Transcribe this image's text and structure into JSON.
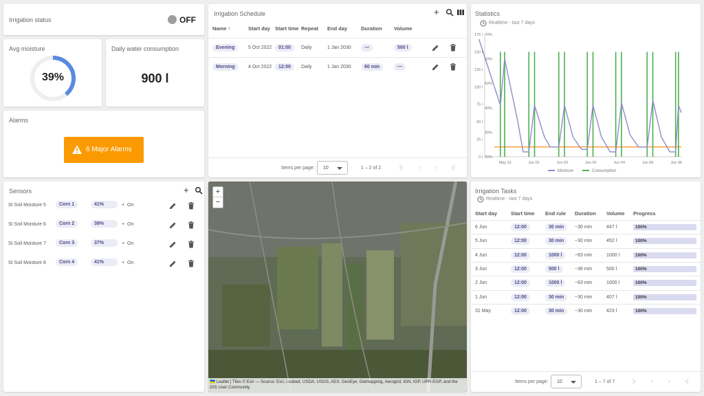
{
  "irrigation_status": {
    "title": "Irrigation status",
    "state": "OFF",
    "indicator_color": "#9e9e9e"
  },
  "avg_moisture": {
    "title": "Avg moisture",
    "value_label": "39%",
    "value": 0.39,
    "color": "#5a8be0"
  },
  "water": {
    "title": "Daily water consumption",
    "value": "900 l"
  },
  "alarms": {
    "title": "Alarms",
    "button_label": "6 Major Alarms",
    "color": "#fb9a00"
  },
  "sensors": {
    "title": "Sensors",
    "rows": [
      {
        "name": "SI Soil Moisture 5",
        "crop": "Corn 1",
        "moisture": "41%",
        "status": "On"
      },
      {
        "name": "SI Soil Moisture 6",
        "crop": "Corn 2",
        "moisture": "38%",
        "status": "On"
      },
      {
        "name": "SI Soil Moisture 7",
        "crop": "Corn 3",
        "moisture": "37%",
        "status": "On"
      },
      {
        "name": "SI Soil Moisture 8",
        "crop": "Corn 4",
        "moisture": "41%",
        "status": "On"
      }
    ]
  },
  "schedule": {
    "title": "Irrigation Schedule",
    "columns": [
      "Name",
      "Start day",
      "Start time",
      "Repeat",
      "End day",
      "Duration",
      "Volume"
    ],
    "rows": [
      {
        "name": "Evening",
        "start_day": "5 Oct 2022",
        "start_time": "01:00",
        "repeat": "Daily",
        "end_day": "1 Jan 2030",
        "duration": "—",
        "volume": "500 l"
      },
      {
        "name": "Morning",
        "start_day": "4 Oct 2022",
        "start_time": "12:00",
        "repeat": "Daily",
        "end_day": "1 Jan 2030",
        "duration": "60 min",
        "volume": "—"
      }
    ],
    "pager": {
      "items_per_page_label": "Items per page:",
      "page_size": "10",
      "range": "1 – 2 of 2"
    }
  },
  "statistics": {
    "title": "Statistics",
    "subtitle": "Realtime - last 7 days",
    "legend": {
      "moisture": "Moisture",
      "consumption": "Consumption"
    },
    "colors": {
      "moisture": "#8c8cc8",
      "consumption": "#4caf50",
      "threshold": "#ff8c1a"
    }
  },
  "chart_data": {
    "type": "line",
    "x_ticks": [
      "May 31",
      "Jun 01",
      "Jun 02",
      "Jun 03",
      "Jun 04",
      "Jun 05",
      "Jun 06"
    ],
    "y_left_ticks": [
      "175 l",
      "150 l",
      "125 l",
      "100 l",
      "75 l",
      "50 l",
      "25 l",
      "0 l"
    ],
    "y_right_ticks": [
      "70%",
      "60%",
      "50%",
      "40%",
      "30%",
      "20%"
    ],
    "y_right_range": [
      20,
      70
    ],
    "y_left_range": [
      0,
      175
    ],
    "x_range": [
      0,
      6.9
    ],
    "series": [
      {
        "name": "Moisture",
        "axis": "right",
        "points": [
          [
            -0.2,
            68
          ],
          [
            0.55,
            41
          ],
          [
            0.7,
            60
          ],
          [
            1.15,
            35
          ],
          [
            1.35,
            22
          ],
          [
            1.55,
            22
          ],
          [
            1.75,
            41
          ],
          [
            2.1,
            28
          ],
          [
            2.3,
            24
          ],
          [
            2.6,
            24
          ],
          [
            2.8,
            41
          ],
          [
            3.1,
            28
          ],
          [
            3.4,
            23
          ],
          [
            3.6,
            23
          ],
          [
            3.8,
            41
          ],
          [
            4.1,
            28
          ],
          [
            4.4,
            22
          ],
          [
            4.6,
            22
          ],
          [
            4.8,
            42
          ],
          [
            5.1,
            29
          ],
          [
            5.4,
            24
          ],
          [
            5.7,
            24
          ],
          [
            5.9,
            43
          ],
          [
            6.2,
            28
          ],
          [
            6.5,
            22
          ],
          [
            6.7,
            22
          ],
          [
            6.8,
            41
          ],
          [
            6.9,
            38
          ]
        ]
      },
      {
        "name": "Consumption",
        "axis": "left",
        "spikes": [
          0.55,
          0.7,
          1.55,
          1.75,
          2.6,
          2.8,
          3.6,
          3.8,
          4.6,
          4.8,
          5.7,
          5.9,
          6.7,
          6.8
        ],
        "spike_value": 150
      },
      {
        "name": "Threshold",
        "axis": "right",
        "constant": 24
      }
    ]
  },
  "map": {
    "attribution": "🇺🇦 Leaflet | Tiles © Esri — Source: Esri, i-cubed, USDA, USGS, AEX, GeoEye, Getmapping, Aerogrid, IGN, IGP, UPR-EGP, and the GIS User Community",
    "zoom_in": "+",
    "zoom_out": "−"
  },
  "tasks": {
    "title": "Irrigation Tasks",
    "subtitle": "Realtime - last 7 days",
    "columns": [
      "Start day",
      "Start time",
      "End rule",
      "Duration",
      "Volume",
      "Progress"
    ],
    "rows": [
      {
        "start_day": "6 Jun",
        "start_time": "12:00",
        "end_rule": "30 min",
        "duration": "~30 min",
        "volume": "447 l",
        "progress": "100%",
        "progress_value": 1.0
      },
      {
        "start_day": "5 Jun",
        "start_time": "12:00",
        "end_rule": "30 min",
        "duration": "~30 min",
        "volume": "452 l",
        "progress": "100%",
        "progress_value": 1.0
      },
      {
        "start_day": "4 Jun",
        "start_time": "12:00",
        "end_rule": "1000 l",
        "duration": "~63 min",
        "volume": "1000 l",
        "progress": "100%",
        "progress_value": 1.0
      },
      {
        "start_day": "3 Jun",
        "start_time": "12:00",
        "end_rule": "500 l",
        "duration": "~36 min",
        "volume": "500 l",
        "progress": "100%",
        "progress_value": 1.0
      },
      {
        "start_day": "2 Jun",
        "start_time": "12:00",
        "end_rule": "1000 l",
        "duration": "~63 min",
        "volume": "1000 l",
        "progress": "100%",
        "progress_value": 1.0
      },
      {
        "start_day": "1 Jun",
        "start_time": "12:00",
        "end_rule": "30 min",
        "duration": "~30 min",
        "volume": "407 l",
        "progress": "100%",
        "progress_value": 1.0
      },
      {
        "start_day": "31 May",
        "start_time": "12:00",
        "end_rule": "30 min",
        "duration": "~30 min",
        "volume": "423 l",
        "progress": "100%",
        "progress_value": 1.0
      }
    ],
    "pager": {
      "items_per_page_label": "Items per page:",
      "page_size": "10",
      "range": "1 – 7 of 7"
    }
  }
}
